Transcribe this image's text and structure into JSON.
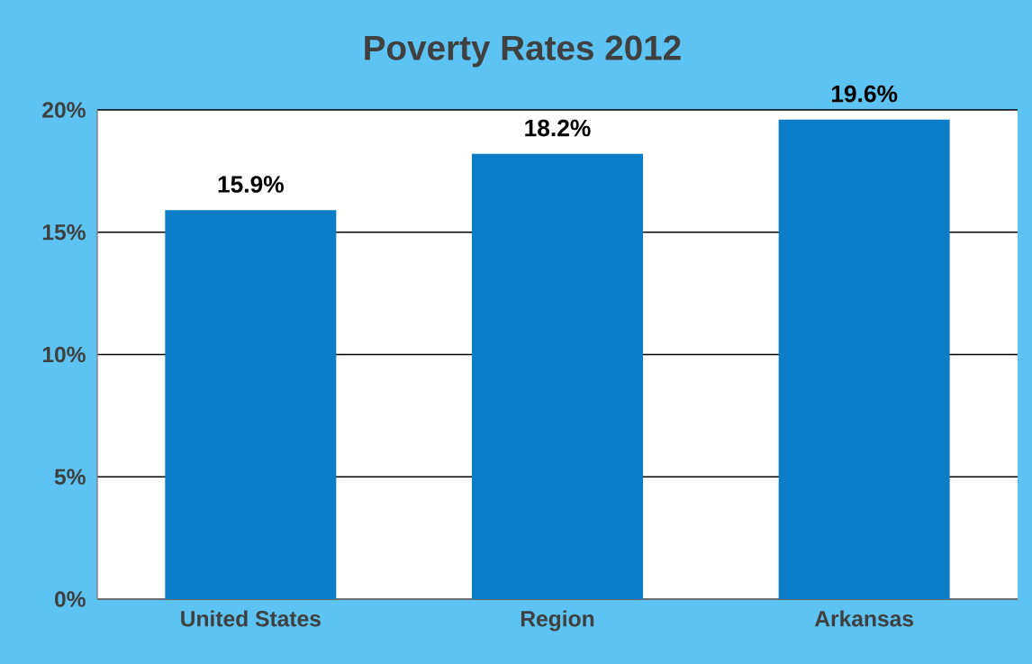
{
  "chart_data": {
    "type": "bar",
    "title": "Poverty Rates 2012",
    "categories": [
      "United States",
      "Region",
      "Arkansas"
    ],
    "values": [
      15.9,
      18.2,
      19.6
    ],
    "value_labels": [
      "15.9%",
      "18.2%",
      "19.6%"
    ],
    "color": "#0a7cc8",
    "ylim": [
      0,
      20
    ],
    "yticks": [
      {
        "value": 0,
        "label": "0%"
      },
      {
        "value": 5,
        "label": "5%"
      },
      {
        "value": 10,
        "label": "10%"
      },
      {
        "value": 15,
        "label": "15%"
      },
      {
        "value": 20,
        "label": "20%"
      }
    ],
    "grid": "y"
  }
}
